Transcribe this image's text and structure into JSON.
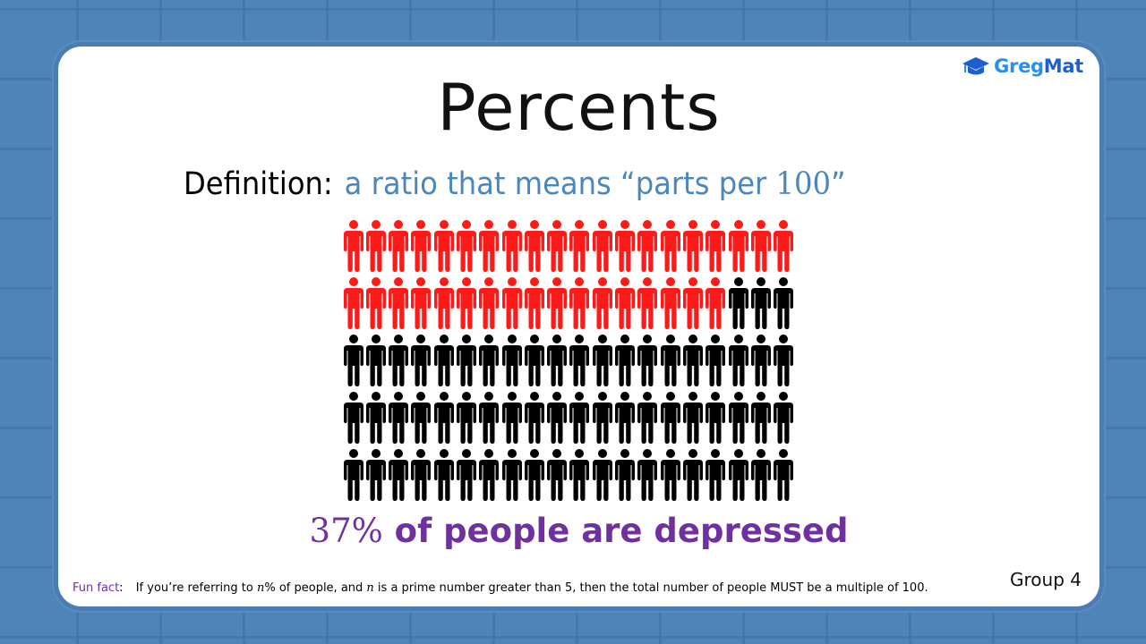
{
  "logo": {
    "part1": "Greg",
    "part2": "Mat",
    "icon": "graduation-cap-icon",
    "color1": "#2a8df0",
    "color2": "#1d5fd0"
  },
  "title": "Percents",
  "definition": {
    "label": "Definition:",
    "text_before": "a ratio that means “parts per ",
    "number": "100",
    "text_after": "”"
  },
  "chart_data": {
    "type": "pictograph",
    "rows": 5,
    "columns": 20,
    "total": 100,
    "highlighted": 37,
    "highlight_color": "#ff1a1a",
    "base_color": "#000000",
    "caption": "37% of people are depressed"
  },
  "stat": {
    "percent": "37%",
    "text": " of people are depressed"
  },
  "fun_fact": {
    "label": "Fun fact",
    "colon": ":",
    "part1": "If you’re referring to ",
    "var1": "n",
    "part2": "% of people, and ",
    "var2": "n",
    "part3": " is a prime number greater than 5, then the total number of people MUST be a multiple of 100."
  },
  "group_label": "Group 4"
}
